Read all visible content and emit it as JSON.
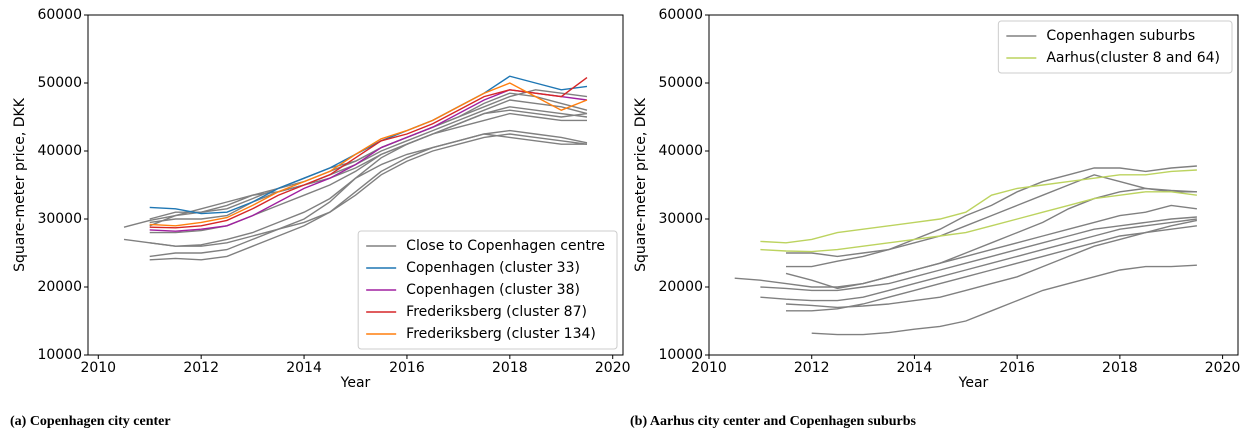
{
  "chart_data": [
    {
      "type": "line",
      "caption": "(a) Copenhagen city center",
      "xlabel": "Year",
      "ylabel": "Square-meter price, DKK",
      "x": [
        2010.5,
        2011,
        2011.5,
        2012,
        2012.5,
        2013,
        2013.5,
        2014,
        2014.5,
        2015,
        2015.5,
        2016,
        2016.5,
        2017,
        2017.5,
        2018,
        2018.5,
        2019,
        2019.5
      ],
      "xlim": [
        2009.8,
        2020.2
      ],
      "xticks": [
        2010,
        2012,
        2014,
        2016,
        2018,
        2020
      ],
      "ylim": [
        10000,
        60000
      ],
      "yticks": [
        10000,
        20000,
        30000,
        40000,
        50000,
        60000
      ],
      "legend": "lower right",
      "series": [
        {
          "name": "Close to Copenhagen centre",
          "color": "#808080",
          "values": [
            28800,
            29800,
            30500,
            31000,
            32000,
            33500,
            34500,
            35500,
            37000,
            38500,
            40500,
            42000,
            43500,
            45000,
            47000,
            48500,
            48000,
            47000,
            46000
          ]
        },
        {
          "color": "#808080",
          "values": [
            27000,
            26500,
            26000,
            26200,
            27000,
            28000,
            29500,
            31000,
            33000,
            36000,
            38000,
            39500,
            40500,
            41500,
            42500,
            42000,
            41500,
            41000,
            41000
          ]
        },
        {
          "color": "#808080",
          "values": [
            null,
            24000,
            24200,
            24000,
            24500,
            26000,
            27500,
            29000,
            31000,
            34000,
            37000,
            39000,
            40500,
            41500,
            42500,
            43000,
            42500,
            42000,
            41200
          ]
        },
        {
          "color": "#808080",
          "values": [
            null,
            24500,
            25000,
            25000,
            25500,
            27000,
            28500,
            30000,
            32500,
            36000,
            39000,
            41000,
            42500,
            43500,
            44500,
            45500,
            45000,
            44500,
            44500
          ]
        },
        {
          "color": "#808080",
          "values": [
            null,
            29000,
            30500,
            31500,
            32500,
            33500,
            34000,
            35000,
            36500,
            38000,
            40000,
            41500,
            43000,
            44500,
            46000,
            47500,
            47000,
            46500,
            45500
          ]
        },
        {
          "color": "#808080",
          "values": [
            null,
            29500,
            30000,
            30000,
            30500,
            32500,
            34000,
            35000,
            36000,
            37500,
            39500,
            41000,
            42500,
            44000,
            45500,
            46500,
            46000,
            45500,
            45000
          ]
        },
        {
          "color": "#808080",
          "values": [
            null,
            26500,
            26000,
            26000,
            26500,
            27500,
            28500,
            29500,
            31000,
            33500,
            36500,
            38500,
            40000,
            41000,
            42000,
            42500,
            42000,
            41500,
            41000
          ]
        },
        {
          "color": "#808080",
          "values": [
            null,
            28000,
            28000,
            28300,
            29000,
            30500,
            32000,
            33500,
            35000,
            37000,
            39500,
            41000,
            42500,
            44000,
            45500,
            46000,
            45500,
            45000,
            45500
          ]
        },
        {
          "color": "#808080",
          "values": [
            null,
            30000,
            31000,
            31000,
            31500,
            33000,
            34500,
            36000,
            37500,
            38500,
            40500,
            42000,
            43500,
            45000,
            46500,
            48000,
            49000,
            48500,
            48000
          ]
        },
        {
          "name": "Copenhagen (cluster 33)",
          "color": "#1f77b4",
          "values": [
            null,
            31700,
            31500,
            30800,
            31000,
            32500,
            34500,
            36000,
            37500,
            39500,
            41500,
            43000,
            44500,
            46500,
            48500,
            51000,
            50000,
            49000,
            49500
          ]
        },
        {
          "name": "Copenhagen (cluster 38)",
          "color": "#a020a0",
          "values": [
            null,
            28400,
            28200,
            28500,
            29000,
            30500,
            32500,
            34500,
            36000,
            38000,
            40500,
            42000,
            43500,
            45500,
            47500,
            49000,
            48500,
            48000,
            47500
          ]
        },
        {
          "name": "Frederiksberg (cluster 87)",
          "color": "#d62728",
          "values": [
            null,
            28800,
            28700,
            29000,
            29800,
            31500,
            33500,
            35000,
            36500,
            39000,
            41500,
            42500,
            44000,
            46000,
            48000,
            49000,
            48500,
            48000,
            50800
          ]
        },
        {
          "name": "Frederiksberg (cluster 134)",
          "color": "#ff7f0e",
          "values": [
            null,
            29200,
            29000,
            29500,
            30200,
            32000,
            34000,
            35500,
            37000,
            39500,
            41800,
            43000,
            44500,
            46500,
            48500,
            50000,
            48000,
            46000,
            47500
          ]
        }
      ]
    },
    {
      "type": "line",
      "caption": "(b) Aarhus city center and Copenhagen suburbs",
      "xlabel": "Year",
      "ylabel": "Square-meter price, DKK",
      "x": [
        2010.5,
        2011,
        2011.5,
        2012,
        2012.5,
        2013,
        2013.5,
        2014,
        2014.5,
        2015,
        2015.5,
        2016,
        2016.5,
        2017,
        2017.5,
        2018,
        2018.5,
        2019,
        2019.5
      ],
      "xlim": [
        2010,
        2020.3
      ],
      "xticks": [
        2010,
        2012,
        2014,
        2016,
        2018,
        2020
      ],
      "ylim": [
        10000,
        60000
      ],
      "yticks": [
        10000,
        20000,
        30000,
        40000,
        50000,
        60000
      ],
      "legend": "upper right",
      "series": [
        {
          "name": "Copenhagen suburbs",
          "color": "#808080",
          "values": [
            21300,
            21000,
            20500,
            20000,
            20000,
            20500,
            21500,
            22500,
            23500,
            24500,
            25500,
            26500,
            27500,
            28500,
            29500,
            30500,
            31000,
            32000,
            31500
          ]
        },
        {
          "color": "#808080",
          "values": [
            null,
            20000,
            19800,
            19500,
            19500,
            20000,
            20500,
            21500,
            22500,
            23500,
            24500,
            25500,
            26500,
            27500,
            28500,
            29000,
            29500,
            30000,
            30300
          ]
        },
        {
          "color": "#808080",
          "values": [
            null,
            18500,
            18200,
            18000,
            18000,
            18500,
            19500,
            20500,
            21500,
            22500,
            23500,
            24500,
            25500,
            26500,
            27500,
            28500,
            29000,
            29500,
            30000
          ]
        },
        {
          "color": "#808080",
          "values": [
            null,
            null,
            17500,
            17300,
            17000,
            17200,
            17500,
            18000,
            18500,
            19500,
            20500,
            21500,
            23000,
            24500,
            26000,
            27000,
            28000,
            29000,
            29800
          ]
        },
        {
          "color": "#808080",
          "values": [
            null,
            null,
            null,
            13200,
            13000,
            13000,
            13300,
            13800,
            14200,
            15000,
            16500,
            18000,
            19500,
            20500,
            21500,
            22500,
            23000,
            23000,
            23200
          ]
        },
        {
          "color": "#808080",
          "values": [
            null,
            null,
            23000,
            23000,
            23800,
            24500,
            25500,
            26500,
            27500,
            29000,
            30500,
            32000,
            33500,
            35000,
            36500,
            35500,
            34500,
            34000,
            34000
          ]
        },
        {
          "color": "#808080",
          "values": [
            null,
            null,
            25000,
            25000,
            24500,
            25000,
            25500,
            27000,
            28500,
            30500,
            32000,
            34000,
            35500,
            36500,
            37500,
            37500,
            37000,
            37500,
            37800
          ]
        },
        {
          "color": "#808080",
          "values": [
            null,
            null,
            22000,
            21000,
            19800,
            20500,
            21500,
            22500,
            23500,
            25000,
            26500,
            28000,
            29500,
            31500,
            33000,
            34000,
            34500,
            34200,
            34000
          ]
        },
        {
          "color": "#808080",
          "values": [
            null,
            null,
            16500,
            16500,
            16800,
            17500,
            18500,
            19500,
            20500,
            21500,
            22500,
            23500,
            24500,
            25500,
            26500,
            27500,
            28000,
            28500,
            29000
          ]
        },
        {
          "name": "Aarhus(cluster 8 and 64)",
          "color": "#bcd35f",
          "values": [
            null,
            26700,
            26500,
            27000,
            28000,
            28500,
            29000,
            29500,
            30000,
            31000,
            33500,
            34500,
            35000,
            35500,
            36000,
            36500,
            36500,
            37000,
            37200
          ]
        },
        {
          "color": "#bcd35f",
          "values": [
            null,
            25500,
            25300,
            25200,
            25500,
            26000,
            26500,
            27000,
            27500,
            28000,
            29000,
            30000,
            31000,
            32000,
            33000,
            33500,
            34000,
            34000,
            33500
          ]
        }
      ]
    }
  ]
}
